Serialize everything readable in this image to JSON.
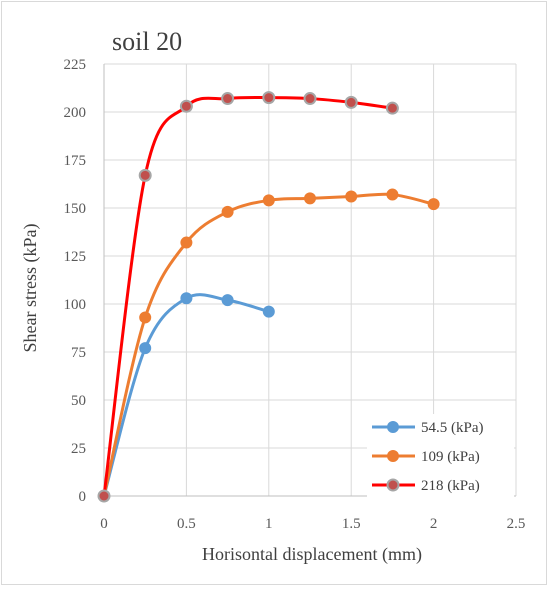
{
  "chart_data": {
    "type": "line",
    "title": "soil 20",
    "xlabel": "Horisontal displacement (mm)",
    "ylabel": "Shear stress (kPa)",
    "xlim": [
      0,
      2.5
    ],
    "ylim": [
      0,
      225
    ],
    "xticks": [
      "0",
      "0.5",
      "1",
      "1.5",
      "2",
      "2.5"
    ],
    "yticks": [
      "0",
      "25",
      "50",
      "75",
      "100",
      "125",
      "150",
      "175",
      "200",
      "225"
    ],
    "grid": true,
    "legend_position": "bottom-right",
    "series": [
      {
        "name": "54.5 (kPa)",
        "color": "#5b9bd5",
        "x": [
          0,
          0.25,
          0.5,
          0.75,
          1.0
        ],
        "y": [
          0,
          77,
          103,
          102,
          96
        ]
      },
      {
        "name": "109 (kPa)",
        "color": "#ed7d31",
        "x": [
          0,
          0.25,
          0.5,
          0.75,
          1.0,
          1.25,
          1.5,
          1.75,
          2.0
        ],
        "y": [
          0,
          93,
          132,
          148,
          154,
          155,
          156,
          157,
          152
        ]
      },
      {
        "name": "218 (kPa)",
        "color": "#ff0000",
        "marker_fill": "#c0504d",
        "marker_edge": "#a6a6a6",
        "x": [
          0,
          0.25,
          0.5,
          0.75,
          1.0,
          1.25,
          1.5,
          1.75
        ],
        "y": [
          0,
          167,
          203,
          207,
          207.5,
          207,
          205,
          202
        ]
      }
    ]
  }
}
